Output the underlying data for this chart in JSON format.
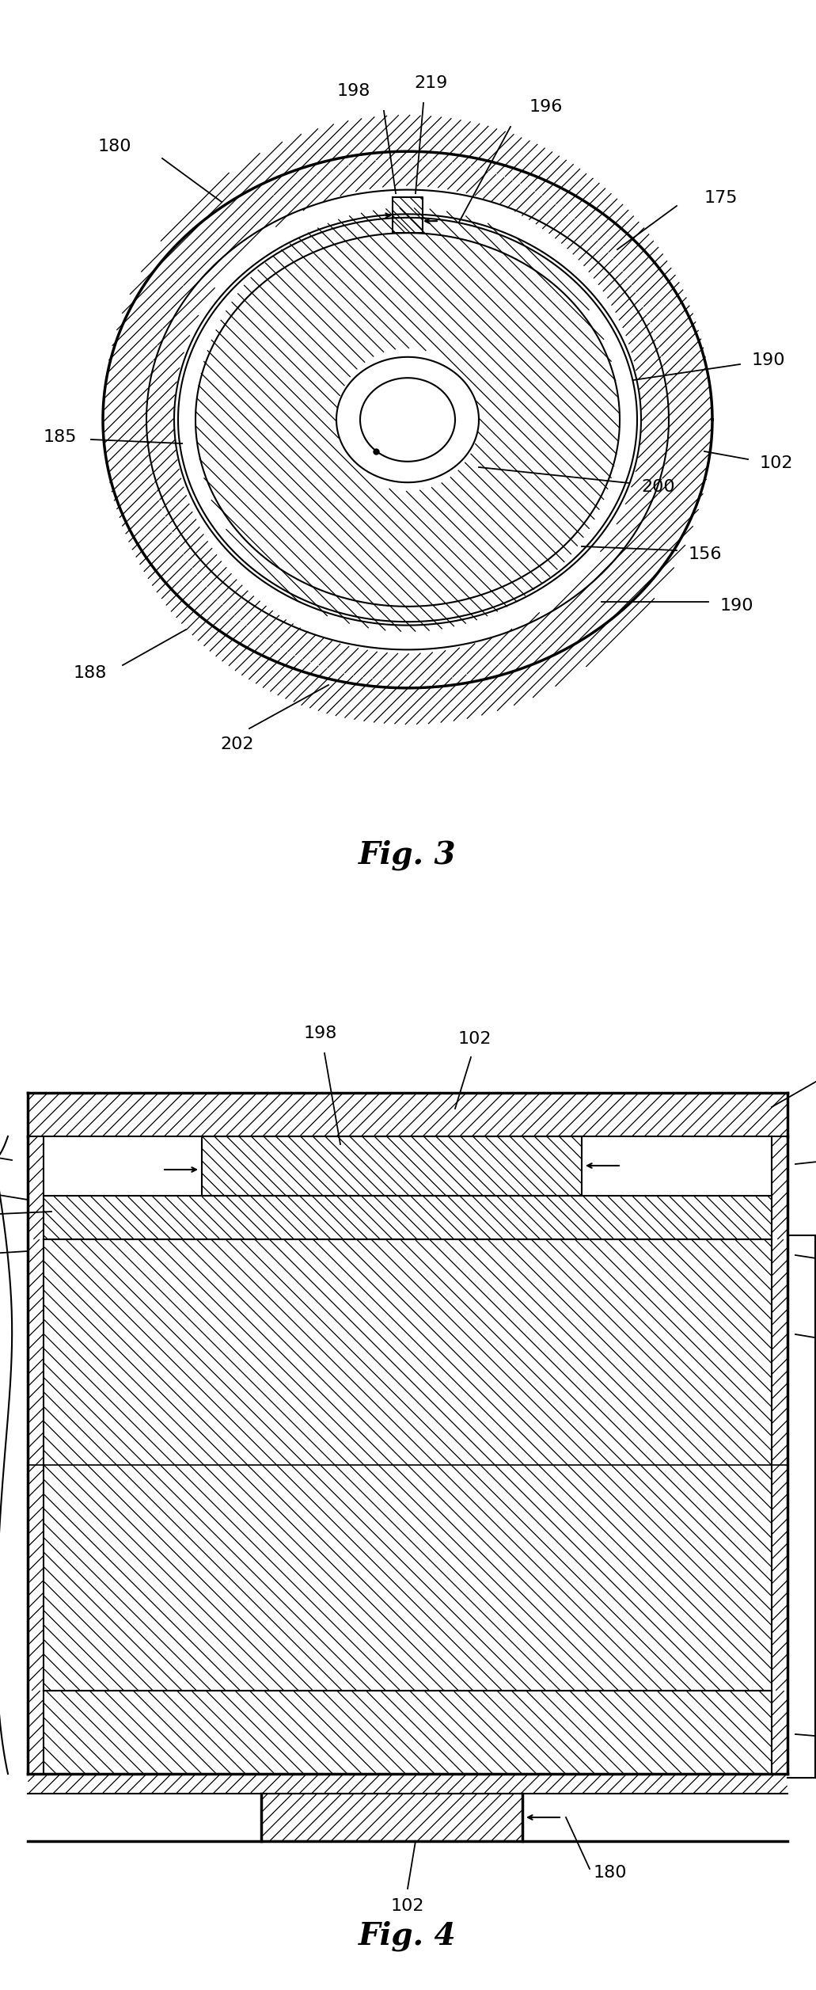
{
  "background_color": "#ffffff",
  "line_color": "#000000",
  "fig3_label": "Fig. 3",
  "fig4_label": "Fig. 4",
  "label_fontsize": 16,
  "title_fontsize": 28
}
